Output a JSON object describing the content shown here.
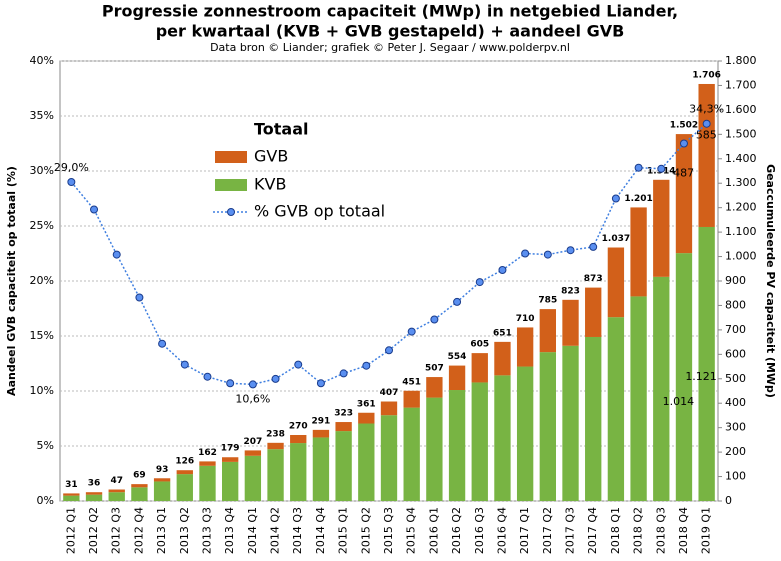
{
  "chart_data": {
    "type": "stacked-bar-line",
    "title": "Progressie zonnestroom capaciteit (MWp) in netgebied Liander,",
    "title_line2": "per kwartaal (KVB + GVB gestapeld) + aandeel GVB",
    "subtitle": "Data bron © Liander; grafiek © Peter J. Segaar / www.polderpv.nl",
    "ylabel": "Aandeel GVB capaciteit op totaal (%)",
    "y2label": "Geaccumuleerde PV capaciteit (MWp)",
    "legend_title": "Totaal",
    "categories": [
      "2012 Q1",
      "2012 Q2",
      "2012 Q3",
      "2012 Q4",
      "2013 Q1",
      "2013 Q2",
      "2013 Q3",
      "2013 Q4",
      "2014 Q1",
      "2014 Q2",
      "2014 Q3",
      "2014 Q4",
      "2015 Q1",
      "2015 Q2",
      "2015 Q3",
      "2015 Q4",
      "2016 Q1",
      "2016 Q2",
      "2016 Q3",
      "2016 Q4",
      "2017 Q1",
      "2017 Q2",
      "2017 Q3",
      "2017 Q4",
      "2018 Q1",
      "2018 Q2",
      "2018 Q3",
      "2018 Q4",
      "2019 Q1"
    ],
    "series": [
      {
        "name": "GVB",
        "color": "#d2601a",
        "axis": "y2",
        "values": [
          9,
          10,
          11,
          13,
          13,
          16,
          18,
          19,
          22,
          26,
          33,
          31,
          37,
          44,
          56,
          69,
          84,
          100,
          120,
          137,
          160,
          176,
          188,
          202,
          285,
          364,
          397,
          487,
          585
        ],
        "value_labels": [
          null,
          null,
          null,
          null,
          null,
          null,
          null,
          null,
          null,
          null,
          null,
          null,
          null,
          null,
          null,
          null,
          null,
          null,
          null,
          null,
          null,
          null,
          null,
          null,
          null,
          null,
          null,
          "487",
          "585"
        ]
      },
      {
        "name": "KVB",
        "color": "#78b443",
        "axis": "y2",
        "values": [
          22,
          26,
          36,
          56,
          80,
          110,
          144,
          160,
          185,
          212,
          237,
          260,
          286,
          317,
          351,
          382,
          423,
          454,
          485,
          514,
          550,
          609,
          635,
          671,
          752,
          837,
          917,
          1014,
          1121
        ],
        "value_labels": [
          null,
          null,
          null,
          null,
          null,
          null,
          null,
          null,
          null,
          null,
          null,
          null,
          null,
          null,
          null,
          null,
          null,
          null,
          null,
          null,
          null,
          null,
          null,
          null,
          null,
          null,
          null,
          "1.014",
          "1.121"
        ]
      },
      {
        "name": "% GVB op totaal",
        "color": "#3f7fe0",
        "axis": "y",
        "values": [
          29.0,
          26.5,
          22.4,
          18.5,
          14.3,
          12.4,
          11.3,
          10.7,
          10.6,
          11.1,
          12.4,
          10.7,
          11.6,
          12.3,
          13.7,
          15.4,
          16.5,
          18.1,
          19.9,
          21.0,
          22.5,
          22.4,
          22.8,
          23.1,
          27.5,
          30.3,
          30.2,
          32.5,
          34.3
        ],
        "value_labels": [
          "29,0%",
          null,
          null,
          null,
          null,
          null,
          null,
          null,
          "10,6%",
          null,
          null,
          null,
          null,
          null,
          null,
          null,
          null,
          null,
          null,
          null,
          null,
          null,
          null,
          null,
          null,
          null,
          null,
          null,
          "34,3%"
        ]
      }
    ],
    "totals": {
      "values": [
        31,
        36,
        47,
        69,
        93,
        126,
        162,
        179,
        207,
        238,
        270,
        291,
        323,
        361,
        407,
        451,
        507,
        554,
        605,
        651,
        710,
        785,
        823,
        873,
        1037,
        1201,
        1314,
        1502,
        1706
      ],
      "value_labels": [
        "31",
        "36",
        "47",
        "69",
        "93",
        "126",
        "162",
        "179",
        "207",
        "238",
        "270",
        "291",
        "323",
        "361",
        "407",
        "451",
        "507",
        "554",
        "605",
        "651",
        "710",
        "785",
        "823",
        "873",
        "1.037",
        "1.201",
        "1.314",
        "1.502",
        "1.706"
      ]
    },
    "ylim": [
      0,
      40
    ],
    "yticks": [
      {
        "value": 0,
        "label": "0%"
      },
      {
        "value": 5,
        "label": "5%"
      },
      {
        "value": 10,
        "label": "10%"
      },
      {
        "value": 15,
        "label": "15%"
      },
      {
        "value": 20,
        "label": "20%"
      },
      {
        "value": 25,
        "label": "25%"
      },
      {
        "value": 30,
        "label": "30%"
      },
      {
        "value": 35,
        "label": "35%"
      },
      {
        "value": 40,
        "label": "40%"
      }
    ],
    "y2lim": [
      0,
      1800
    ],
    "y2ticks": [
      0,
      100,
      200,
      300,
      400,
      500,
      600,
      700,
      800,
      900,
      {
        "value": 1000,
        "label": "1.000"
      },
      {
        "value": 1100,
        "label": "1.100"
      },
      {
        "value": 1200,
        "label": "1.200"
      },
      {
        "value": 1300,
        "label": "1.300"
      },
      {
        "value": 1400,
        "label": "1.400"
      },
      {
        "value": 1500,
        "label": "1.500"
      },
      {
        "value": 1600,
        "label": "1.600"
      },
      {
        "value": 1700,
        "label": "1.700"
      },
      {
        "value": 1800,
        "label": "1.800"
      }
    ],
    "grid": true
  }
}
